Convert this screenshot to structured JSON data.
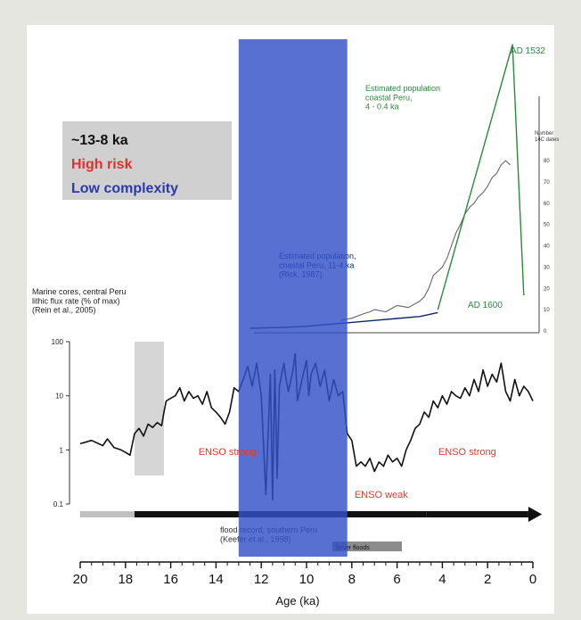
{
  "chart_data": {
    "type": "line",
    "xlabel": "Age (ka)",
    "xlim": [
      20,
      0
    ],
    "xticks": [
      "20",
      "18",
      "16",
      "14",
      "12",
      "10",
      "8",
      "6",
      "4",
      "2",
      "0"
    ],
    "info_box": {
      "period": "~13-8 ka",
      "risk": "High risk",
      "complexity": "Low complexity"
    },
    "highlight_band": {
      "from": 13,
      "to": 8.2,
      "color": "#3350c8"
    },
    "grey_band": {
      "from": 17.6,
      "to": 16.3,
      "color": "#d6d6d6"
    },
    "marine": {
      "label_lines": [
        "Marine cores, central Peru",
        "lithic flux rate (% of max)",
        "(Rein et al., 2005)"
      ],
      "yscale": "log",
      "yticks": [
        "100",
        "10",
        "1",
        "0.1"
      ],
      "ylim": [
        0.1,
        100
      ],
      "color": "#111111",
      "x": [
        20,
        19.5,
        19,
        18.8,
        18.5,
        18.2,
        18,
        17.8,
        17.6,
        17.4,
        17.2,
        17,
        16.8,
        16.6,
        16.4,
        16.3,
        16.2,
        16,
        15.8,
        15.6,
        15.4,
        15.2,
        15,
        14.8,
        14.6,
        14.4,
        14.2,
        14,
        13.8,
        13.6,
        13.4,
        13.2,
        13,
        12.8,
        12.6,
        12.4,
        12.2,
        12,
        11.8,
        11.6,
        11.5,
        11.4,
        11.3,
        11.2,
        11,
        10.9,
        10.8,
        10.6,
        10.5,
        10.4,
        10.2,
        10,
        9.9,
        9.8,
        9.6,
        9.4,
        9.2,
        9,
        8.8,
        8.6,
        8.4,
        8.2,
        8,
        7.8,
        7.6,
        7.4,
        7.2,
        7,
        6.8,
        6.6,
        6.4,
        6.2,
        6,
        5.8,
        5.6,
        5.4,
        5.2,
        5,
        4.8,
        4.6,
        4.4,
        4.2,
        4,
        3.8,
        3.6,
        3.4,
        3.2,
        3,
        2.8,
        2.6,
        2.4,
        2.2,
        2,
        1.8,
        1.6,
        1.4,
        1.2,
        1,
        0.8,
        0.6,
        0.4,
        0.2,
        0
      ],
      "y": [
        1.3,
        1.5,
        1.2,
        1.6,
        1.1,
        1.0,
        0.9,
        0.8,
        2.0,
        2.5,
        1.8,
        3.0,
        2.6,
        3.2,
        2.8,
        5,
        8,
        9,
        10,
        14,
        8,
        12,
        9,
        10,
        7,
        12,
        6,
        5,
        4,
        3,
        5,
        14,
        12,
        20,
        35,
        15,
        40,
        10,
        0.15,
        25,
        0.12,
        30,
        0.3,
        15,
        40,
        20,
        12,
        30,
        60,
        8,
        20,
        45,
        10,
        25,
        40,
        15,
        30,
        8,
        20,
        10,
        12,
        2,
        1.5,
        0.5,
        0.6,
        0.5,
        0.7,
        0.4,
        0.6,
        0.5,
        0.8,
        0.6,
        0.7,
        0.5,
        1.0,
        1.5,
        2.5,
        3.0,
        5,
        4,
        8,
        6,
        10,
        7,
        12,
        10,
        9,
        14,
        10,
        20,
        12,
        30,
        15,
        25,
        18,
        40,
        12,
        8,
        20,
        10,
        15,
        12,
        8
      ]
    },
    "enso_labels": [
      {
        "text": "ENSO strong",
        "x": 13.5,
        "y": 1.2
      },
      {
        "text": "ENSO weak",
        "x": 6.7,
        "y": 0.16
      },
      {
        "text": "ENSO strong",
        "x": 2.9,
        "y": 1.2
      }
    ],
    "population_early": {
      "label_lines": [
        "Estimated population,",
        "coastal Peru, 11-4 ka",
        "(Rick, 1987)"
      ],
      "color": "#0a2a6e",
      "x": [
        12.5,
        11,
        10,
        9,
        8,
        7,
        6,
        5,
        4.2
      ],
      "y": [
        0,
        0.5,
        1,
        2,
        3,
        4,
        5,
        6,
        8
      ]
    },
    "dates14c": {
      "label_lines": [
        "Number",
        "14C dates"
      ],
      "yticks": [
        "80",
        "70",
        "60",
        "50",
        "40",
        "30",
        "20",
        "10",
        "0"
      ],
      "ylim": [
        0,
        90
      ],
      "color": "#666666",
      "x": [
        8.5,
        8,
        7.5,
        7.2,
        7,
        6.5,
        6,
        5.5,
        5,
        4.8,
        4.6,
        4.4,
        4.2,
        4,
        3.8,
        3.6,
        3.4,
        3.2,
        3,
        2.8,
        2.6,
        2.4,
        2.2,
        2,
        1.8,
        1.6,
        1.4,
        1.2,
        1
      ],
      "y": [
        5,
        6,
        8,
        9,
        10,
        9,
        12,
        11,
        14,
        16,
        20,
        26,
        28,
        30,
        34,
        40,
        46,
        50,
        55,
        58,
        60,
        63,
        65,
        68,
        72,
        74,
        78,
        80,
        78
      ]
    },
    "population_late": {
      "label_lines": [
        "Estimated population",
        "coastal Peru,",
        "4 - 0.4 ka"
      ],
      "color": "#2a8a3c",
      "ylim": [
        0,
        100
      ],
      "x": [
        4.2,
        0.9,
        0.4
      ],
      "y": [
        8,
        100,
        13
      ],
      "peak_label": "AD 1532",
      "end_label": "AD 1600"
    },
    "flood_bar": {
      "label_lines": [
        "flood record, southern Peru",
        "(Keefer et al., 1998)"
      ],
      "tag": "fewer floods",
      "segments": [
        {
          "from": 20,
          "to": 17.6,
          "color": "#c0c0c0"
        },
        {
          "from": 17.6,
          "to": 4.7,
          "color": "#111111"
        },
        {
          "from": 4.7,
          "to": 0.2,
          "color": "#111111"
        }
      ]
    }
  }
}
